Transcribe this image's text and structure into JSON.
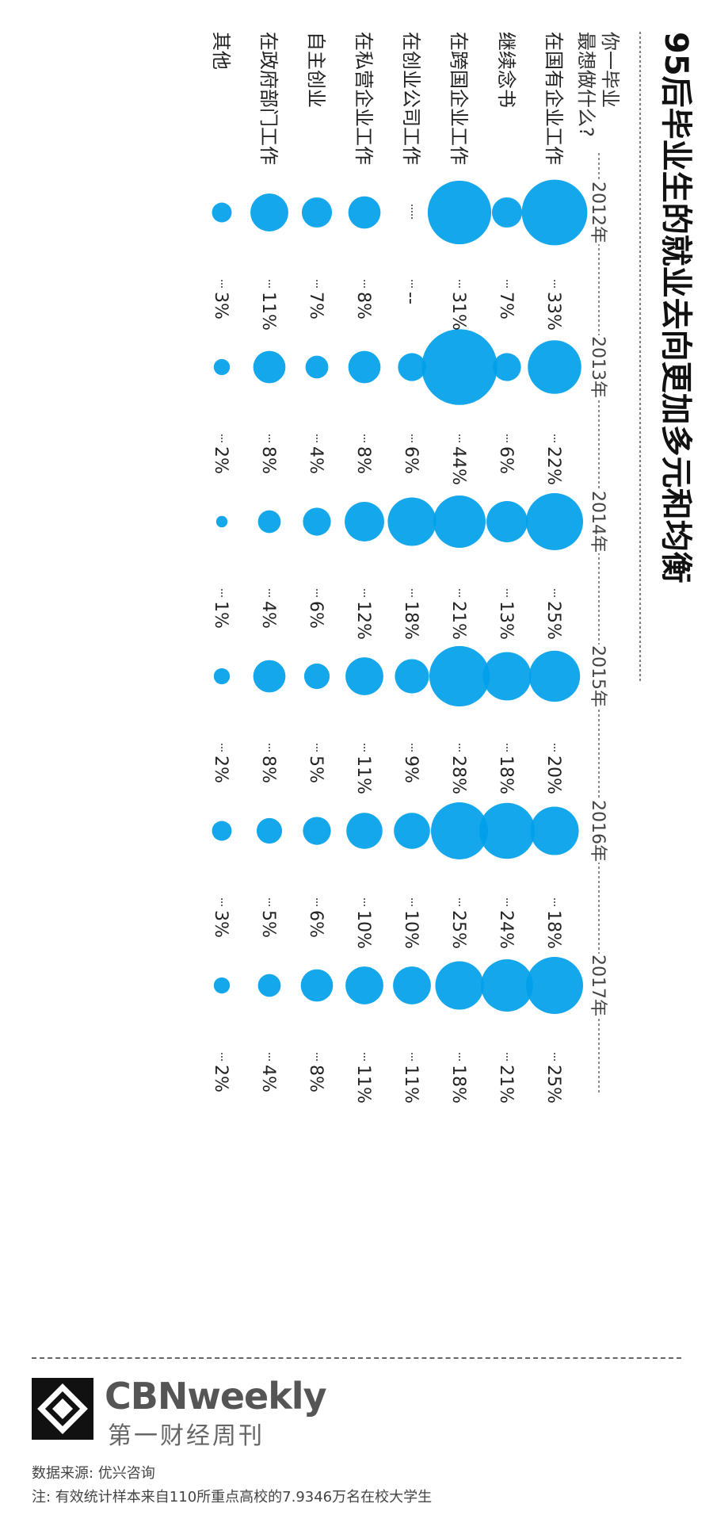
{
  "chart_data": {
    "type": "bubble",
    "title": "95后毕业生的就业去向更加多元和均衡",
    "question_lines": [
      "你一毕业",
      "最想做什么?"
    ],
    "years": [
      "2012年",
      "2013年",
      "2014年",
      "2015年",
      "2016年",
      "2017年"
    ],
    "categories": [
      "在国有企业工作",
      "继续念书",
      "在跨国企业工作",
      "在创业公司工作",
      "在私营企业工作",
      "自主创业",
      "在政府部门工作",
      "其他"
    ],
    "series": [
      {
        "name": "在国有企业工作",
        "values": [
          33,
          22,
          25,
          20,
          18,
          25
        ]
      },
      {
        "name": "继续念书",
        "values": [
          7,
          6,
          13,
          18,
          24,
          21
        ]
      },
      {
        "name": "在跨国企业工作",
        "values": [
          31,
          44,
          21,
          28,
          25,
          18
        ]
      },
      {
        "name": "在创业公司工作",
        "values": [
          null,
          6,
          18,
          9,
          10,
          11
        ]
      },
      {
        "name": "在私营企业工作",
        "values": [
          8,
          8,
          12,
          11,
          10,
          11
        ]
      },
      {
        "name": "自主创业",
        "values": [
          7,
          4,
          6,
          5,
          6,
          8
        ]
      },
      {
        "name": "在政府部门工作",
        "values": [
          11,
          8,
          4,
          8,
          5,
          4
        ]
      },
      {
        "name": "其他",
        "values": [
          3,
          2,
          1,
          2,
          3,
          2
        ]
      }
    ],
    "value_labels": [
      [
        "33%",
        "22%",
        "25%",
        "20%",
        "18%",
        "25%"
      ],
      [
        "7%",
        "6%",
        "13%",
        "18%",
        "24%",
        "21%"
      ],
      [
        "31%",
        "44%",
        "21%",
        "28%",
        "25%",
        "18%"
      ],
      [
        "--",
        "6%",
        "18%",
        "9%",
        "10%",
        "11%"
      ],
      [
        "8%",
        "8%",
        "12%",
        "11%",
        "10%",
        "11%"
      ],
      [
        "7%",
        "4%",
        "6%",
        "5%",
        "6%",
        "8%"
      ],
      [
        "11%",
        "8%",
        "4%",
        "8%",
        "5%",
        "4%"
      ],
      [
        "3%",
        "2%",
        "1%",
        "2%",
        "3%",
        "2%"
      ]
    ],
    "colors": {
      "bubble": "#00a0e9",
      "overlap": "#0a6ad6",
      "text": "#222222"
    }
  },
  "footer": {
    "brand_en": "CBNweekly",
    "brand_cn": "第一财经周刊",
    "source": "数据来源: 优兴咨询",
    "note": "注: 有效统计样本来自110所重点高校的7.9346万名在校大学生"
  }
}
